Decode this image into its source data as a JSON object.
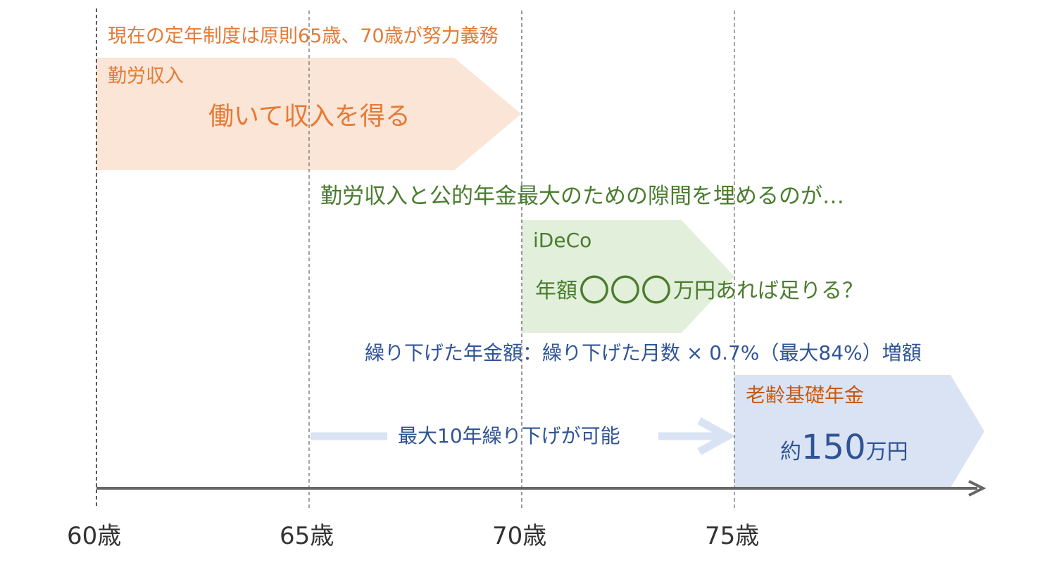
{
  "rule_text": "現在の定年制度は原則65歳、70歳が努力義務",
  "work": {
    "label": "勤労収入",
    "main": "働いて収入を得る"
  },
  "bridge_text": "勤労収入と公的年金最大のための隙間を埋めるのが…",
  "ideco": {
    "label": "iDeCo",
    "prefix": "年額",
    "circles": "〇〇〇",
    "suffix": "万円あれば足りる？"
  },
  "deferral_formula": "繰り下げた年金額：繰り下げた月数 × 0.7%（最大84%）増額",
  "deferral_arrow_label": "最大10年繰り下げが可能",
  "pension": {
    "label": "老齢基礎年金",
    "prefix": "約",
    "amount": "150",
    "unit": "万円"
  },
  "ages": [
    "60歳",
    "65歳",
    "70歳",
    "75歳"
  ],
  "colors": {
    "work_fill": "#fbe5d6",
    "ideco_fill": "#e2efda",
    "pension_fill": "#dae3f3",
    "deferral_arrow": "#dae3f3",
    "axis": "#666666"
  }
}
